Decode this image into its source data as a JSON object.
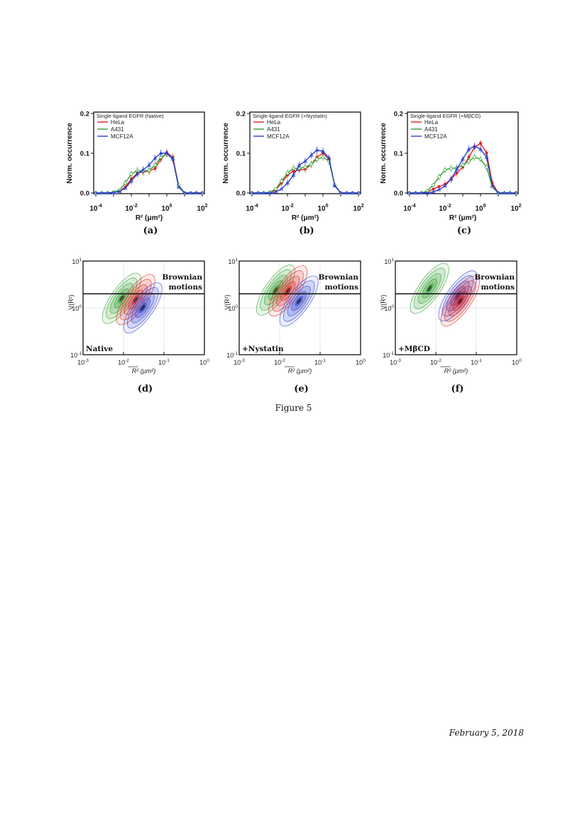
{
  "figure_caption": "Figure 5",
  "footer_date": "February 5, 2018",
  "colors": {
    "HeLa": "#e02020",
    "A431": "#2fa02f",
    "MCF12A": "#2a3fd0"
  },
  "chart_data": [
    {
      "panel": "(a)",
      "type": "line",
      "legend_title": "Single-ligand EGFR (Native)",
      "xlabel": "R² (μm²)",
      "ylabel": "Norm. occurrence",
      "xscale": "log",
      "xlim": [
        0.0001,
        100
      ],
      "ylim": [
        0,
        0.2
      ],
      "xticks": [
        "-4",
        "-2",
        "0",
        "2"
      ],
      "yticks": [
        "0.0",
        "0.1",
        "0.2"
      ],
      "x": [
        0.0001,
        0.00022,
        0.00046,
        0.001,
        0.0022,
        0.0046,
        0.01,
        0.022,
        0.046,
        0.1,
        0.22,
        0.46,
        1,
        2.2,
        4.6,
        10,
        22,
        46,
        100
      ],
      "series": [
        {
          "name": "HeLa",
          "values": [
            0,
            0,
            0,
            0.001,
            0.005,
            0.015,
            0.035,
            0.05,
            0.053,
            0.055,
            0.062,
            0.085,
            0.102,
            0.09,
            0.02,
            0,
            0,
            0,
            0
          ]
        },
        {
          "name": "A431",
          "values": [
            0,
            0,
            0,
            0.002,
            0.008,
            0.025,
            0.048,
            0.056,
            0.055,
            0.057,
            0.07,
            0.09,
            0.098,
            0.085,
            0.02,
            0,
            0,
            0,
            0
          ]
        },
        {
          "name": "MCF12A",
          "values": [
            0,
            0,
            0,
            0.001,
            0.004,
            0.012,
            0.03,
            0.048,
            0.058,
            0.07,
            0.088,
            0.1,
            0.1,
            0.085,
            0.015,
            0,
            0,
            0,
            0
          ]
        }
      ]
    },
    {
      "panel": "(b)",
      "type": "line",
      "legend_title": "Single-ligand EGFR (+Nystatin)",
      "xlabel": "R² (μm²)",
      "ylabel": "Norm. occurrence",
      "xscale": "log",
      "xlim": [
        0.0001,
        100
      ],
      "ylim": [
        0,
        0.2
      ],
      "xticks": [
        "-4",
        "-2",
        "0",
        "2"
      ],
      "yticks": [
        "0.0",
        "0.1",
        "0.2"
      ],
      "x": [
        0.0001,
        0.00022,
        0.00046,
        0.001,
        0.0022,
        0.0046,
        0.01,
        0.022,
        0.046,
        0.1,
        0.22,
        0.46,
        1,
        2.2,
        4.6,
        10,
        22,
        46,
        100
      ],
      "series": [
        {
          "name": "HeLa",
          "values": [
            0,
            0,
            0,
            0.001,
            0.008,
            0.025,
            0.045,
            0.055,
            0.058,
            0.06,
            0.072,
            0.09,
            0.1,
            0.085,
            0.02,
            0,
            0,
            0,
            0
          ]
        },
        {
          "name": "A431",
          "values": [
            0,
            0,
            0,
            0.002,
            0.01,
            0.03,
            0.05,
            0.062,
            0.062,
            0.065,
            0.072,
            0.085,
            0.09,
            0.08,
            0.02,
            0,
            0,
            0,
            0
          ]
        },
        {
          "name": "MCF12A",
          "values": [
            0,
            0,
            0,
            0,
            0.003,
            0.01,
            0.025,
            0.045,
            0.07,
            0.08,
            0.095,
            0.108,
            0.105,
            0.088,
            0.018,
            0,
            0,
            0,
            0
          ]
        }
      ]
    },
    {
      "panel": "(c)",
      "type": "line",
      "legend_title": "Single-ligand EGFR (+MβCD)",
      "xlabel": "R² (μm²)",
      "ylabel": "Norm. occurrence",
      "xscale": "log",
      "xlim": [
        0.0001,
        100
      ],
      "ylim": [
        0,
        0.2
      ],
      "xticks": [
        "-4",
        "-2",
        "0",
        "2"
      ],
      "yticks": [
        "0.0",
        "0.1",
        "0.2"
      ],
      "x": [
        0.0001,
        0.00022,
        0.00046,
        0.001,
        0.0022,
        0.0046,
        0.01,
        0.022,
        0.046,
        0.1,
        0.22,
        0.46,
        1,
        2.2,
        4.6,
        10,
        22,
        46,
        100
      ],
      "series": [
        {
          "name": "HeLa",
          "values": [
            0,
            0,
            0,
            0.002,
            0.01,
            0.016,
            0.022,
            0.035,
            0.05,
            0.065,
            0.09,
            0.115,
            0.125,
            0.1,
            0.025,
            0,
            0,
            0,
            0
          ]
        },
        {
          "name": "A431",
          "values": [
            0,
            0,
            0,
            0.005,
            0.02,
            0.04,
            0.058,
            0.062,
            0.063,
            0.07,
            0.08,
            0.09,
            0.085,
            0.065,
            0.015,
            0,
            0,
            0,
            0
          ]
        },
        {
          "name": "MCF12A",
          "values": [
            0,
            0,
            0,
            0,
            0.003,
            0.008,
            0.018,
            0.035,
            0.06,
            0.085,
            0.11,
            0.118,
            0.11,
            0.09,
            0.018,
            0,
            0,
            0,
            0
          ]
        }
      ]
    },
    {
      "panel": "(d)",
      "type": "contour",
      "annotation": "Native",
      "threshold_label": [
        "Brownian",
        "motions"
      ],
      "threshold_value": 2,
      "xlabel": "R² (μm²)",
      "ylabel": "V(R²)",
      "xscale": "log",
      "yscale": "log",
      "xlim": [
        0.001,
        1
      ],
      "ylim": [
        0.1,
        10
      ],
      "xticks": [
        "-3",
        "-2",
        "-1",
        "0"
      ],
      "yticks": [
        "-1",
        "0",
        "1"
      ],
      "density_centers": [
        {
          "series": "A431",
          "x": 0.009,
          "y": 1.6
        },
        {
          "series": "HeLa",
          "x": 0.02,
          "y": 1.5
        },
        {
          "series": "MCF12A",
          "x": 0.03,
          "y": 1.0
        }
      ]
    },
    {
      "panel": "(e)",
      "type": "contour",
      "annotation": "+Nystatin",
      "threshold_label": [
        "Brownian",
        "motions"
      ],
      "threshold_value": 2,
      "xlabel": "R² (μm²)",
      "ylabel": "V(R²)",
      "xscale": "log",
      "yscale": "log",
      "xlim": [
        0.001,
        1
      ],
      "ylim": [
        0.1,
        10
      ],
      "xticks": [
        "-3",
        "-2",
        "-1",
        "0"
      ],
      "yticks": [
        "-1",
        "0",
        "1"
      ],
      "density_centers": [
        {
          "series": "A431",
          "x": 0.008,
          "y": 2.4
        },
        {
          "series": "HeLa",
          "x": 0.016,
          "y": 2.3
        },
        {
          "series": "MCF12A",
          "x": 0.03,
          "y": 1.4
        }
      ]
    },
    {
      "panel": "(f)",
      "type": "contour",
      "annotation": "+MβCD",
      "threshold_label": [
        "Brownian",
        "motions"
      ],
      "threshold_value": 2,
      "xlabel": "R² (μm²)",
      "ylabel": "V(R²)",
      "xscale": "log",
      "yscale": "log",
      "xlim": [
        0.001,
        1
      ],
      "ylim": [
        0.1,
        10
      ],
      "xticks": [
        "-3",
        "-2",
        "-1",
        "0"
      ],
      "yticks": [
        "-1",
        "0",
        "1"
      ],
      "density_centers": [
        {
          "series": "A431",
          "x": 0.007,
          "y": 2.6
        },
        {
          "series": "MCF12A",
          "x": 0.035,
          "y": 1.8
        },
        {
          "series": "HeLa",
          "x": 0.04,
          "y": 1.4
        }
      ]
    }
  ]
}
